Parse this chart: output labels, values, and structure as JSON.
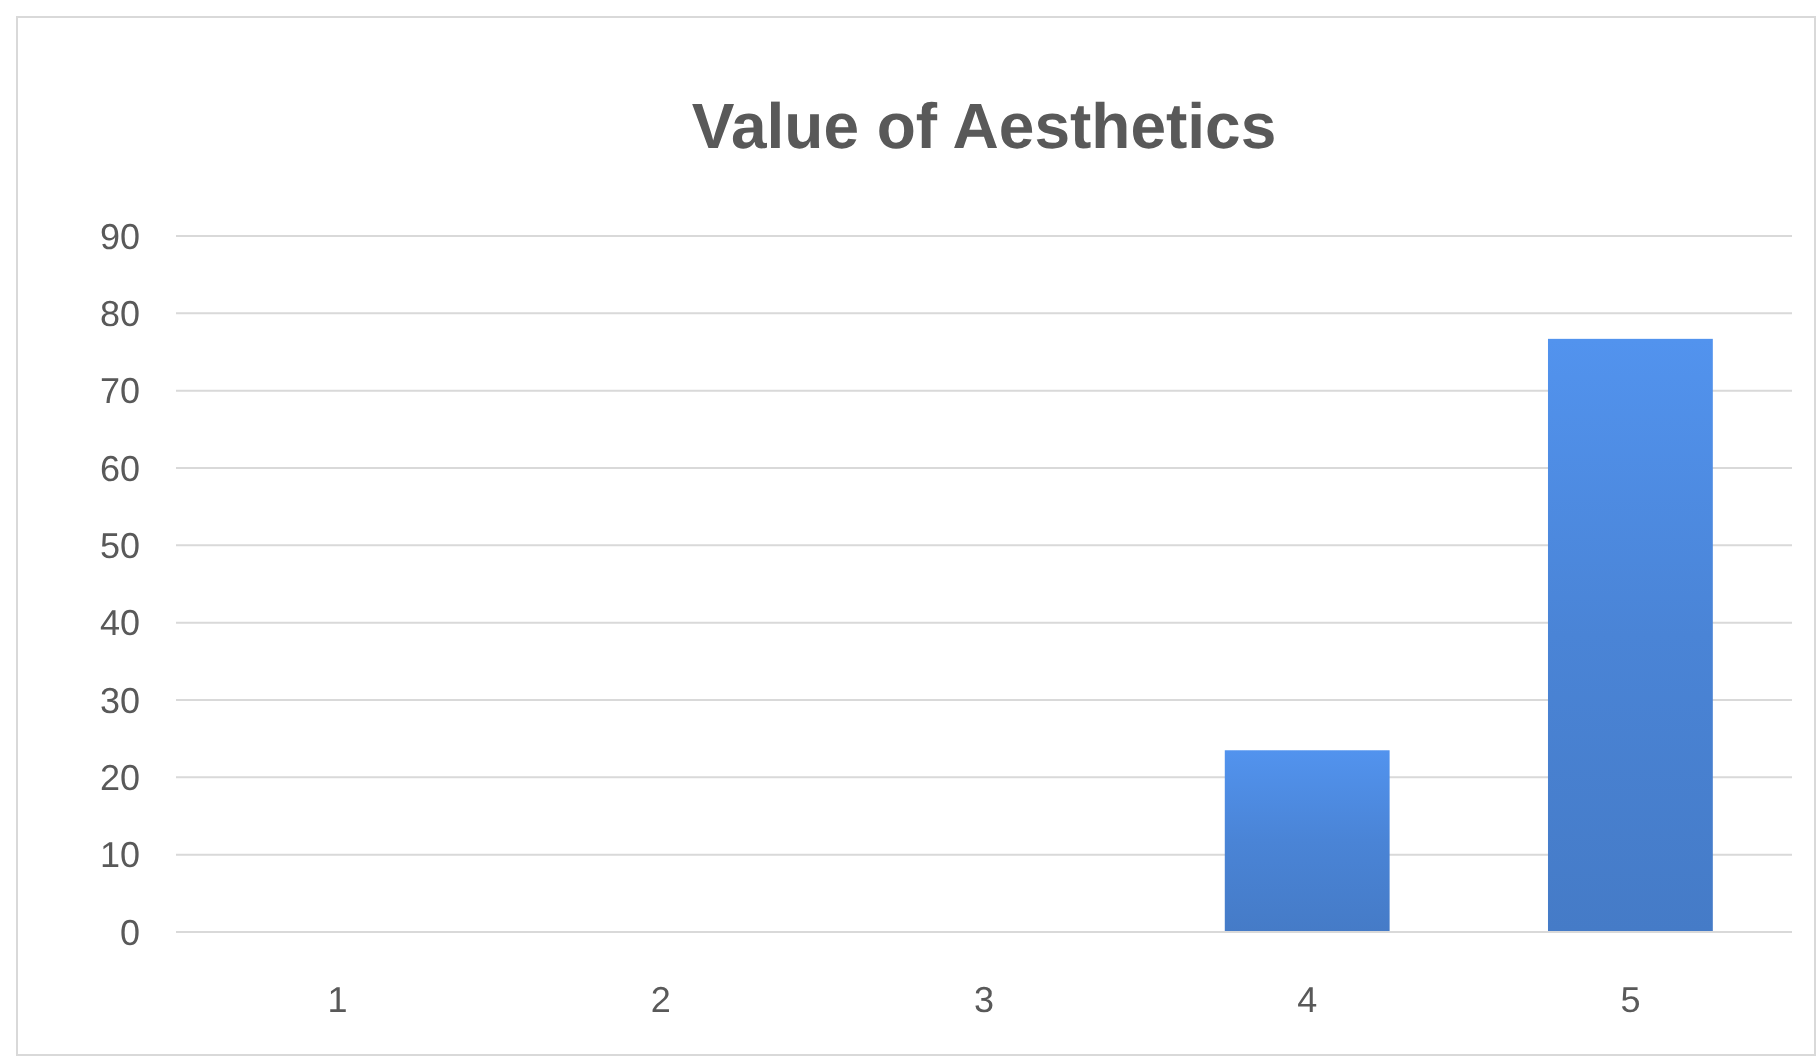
{
  "chart_data": {
    "type": "bar",
    "title": "Value of Aesthetics",
    "categories": [
      "1",
      "2",
      "3",
      "4",
      "5"
    ],
    "values": [
      0,
      0,
      0,
      23.5,
      76.7
    ],
    "color": "#4a84d6",
    "ylim": [
      0,
      90
    ],
    "yticks": [
      0,
      10,
      20,
      30,
      40,
      50,
      60,
      70,
      80,
      90
    ],
    "grid": "y"
  }
}
